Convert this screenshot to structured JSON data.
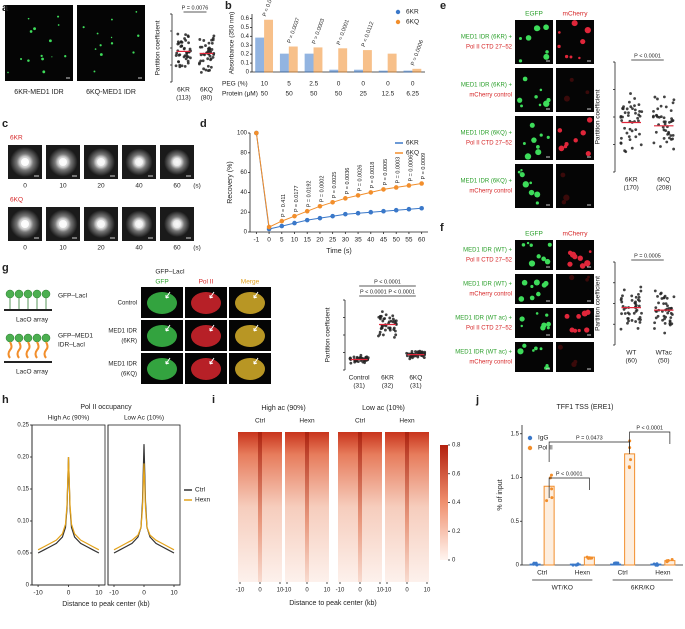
{
  "panels": {
    "a": {
      "images": [
        "6KR-MED1 IDR",
        "6KQ-MED1 IDR"
      ]
    },
    "c": {
      "label": "c",
      "rows": [
        "6KR",
        "6KQ"
      ],
      "times": [
        "0",
        "10",
        "20",
        "40",
        "60"
      ],
      "unit": "(s)"
    },
    "e": {
      "label": "e",
      "channels": [
        "EGFP",
        "mCherry"
      ],
      "rows": [
        [
          "MED1 IDR (6KR) +",
          "Pol II CTD 27–52"
        ],
        [
          "MED1 IDR (6KR) +",
          "mCherry control"
        ],
        [
          "MED1 IDR (6KQ) +",
          "Pol II CTD 27–52"
        ],
        [
          "MED1 IDR (6KQ) +",
          "mCherry control"
        ]
      ]
    },
    "f": {
      "label": "f",
      "channels": [
        "EGFP",
        "mCherry"
      ],
      "rows": [
        [
          "MED1 IDR (WT) +",
          "Pol II CTD 27–52"
        ],
        [
          "MED1 IDR (WT) +",
          "mCherry control"
        ],
        [
          "MED1 IDR (WT ac) +",
          "Pol II CTD 27–52"
        ],
        [
          "MED1 IDR (WT ac) +",
          "mCherry control"
        ]
      ]
    },
    "g": {
      "label": "g",
      "schematic": [
        "GFP–LacI",
        "LacO array",
        "GFP–MED1",
        "IDR–LacI",
        "LacO array"
      ],
      "construct": "GFP–LacI",
      "channels": [
        "GFP",
        "Pol II",
        "Merge"
      ],
      "rows": [
        [
          "Control"
        ],
        [
          "MED1 IDR",
          "(6KR)"
        ],
        [
          "MED1 IDR",
          "(6KQ)"
        ]
      ]
    }
  },
  "chart_data": [
    {
      "panel": "a",
      "type": "strip",
      "ylabel": "Partition coefficient",
      "categories": [
        "6KR",
        "6KQ"
      ],
      "counts": [
        "(113)",
        "(80)"
      ],
      "annotations": [
        "P = 0.0076"
      ]
    },
    {
      "panel": "b",
      "type": "bar",
      "ylabel": "Absorbance (350 nm)",
      "ylim": [
        0,
        0.65
      ],
      "yticks": [
        0,
        0.1,
        0.2,
        0.3,
        0.4,
        0.5,
        0.6
      ],
      "row_labels": [
        "PEG (%)",
        "Protein (μM)"
      ],
      "peg": [
        10,
        5,
        2.5,
        0,
        0,
        0,
        0
      ],
      "protein": [
        50,
        50,
        50,
        50,
        25,
        12.5,
        6.25
      ],
      "series": [
        {
          "name": "6KR",
          "color": "#3a78c9",
          "values": [
            0.38,
            0.2,
            0.2,
            0.02,
            0.02,
            0.01,
            0.01
          ]
        },
        {
          "name": "6KQ",
          "color": "#f28e2b",
          "values": [
            0.58,
            0.28,
            0.27,
            0.26,
            0.24,
            0.2,
            0.03
          ]
        }
      ],
      "annotations": [
        "P = 0.0001",
        "P = 0.0037",
        "P = 0.0003",
        "P = 0.0001",
        "P = 0.0112",
        null,
        "P = 0.0006"
      ]
    },
    {
      "panel": "d",
      "type": "line",
      "xlabel": "Time (s)",
      "ylabel": "Recovery (%)",
      "markers": true,
      "categories": [
        "-1",
        "0",
        "5",
        "10",
        "15",
        "20",
        "25",
        "30",
        "35",
        "40",
        "45",
        "50",
        "55",
        "60"
      ],
      "ylim": [
        0,
        100
      ],
      "yticks": [
        0,
        20,
        40,
        60,
        80,
        100
      ],
      "series": [
        {
          "name": "6KR",
          "color": "#3a78c9",
          "values": [
            100,
            3,
            6,
            9,
            12,
            14,
            16,
            18,
            19,
            20,
            21,
            22,
            23,
            24
          ]
        },
        {
          "name": "6KQ",
          "color": "#f28e2b",
          "values": [
            100,
            5,
            11,
            16,
            21,
            26,
            30,
            34,
            37,
            40,
            43,
            45,
            47,
            49
          ]
        }
      ],
      "annotations": [
        null,
        null,
        "P = 0.411",
        "P = 0.0177",
        "P = 0.0192",
        "P = 0.0002",
        "P = 0.0025",
        "P = 0.0036",
        "P = 0.0026",
        "P = 0.0018",
        "P = 0.0005",
        "P = 0.0003",
        "P = 0.0006",
        "P = 0.0009"
      ]
    },
    {
      "panel": "e",
      "type": "strip",
      "ylabel": "Partition coefficient",
      "categories": [
        "6KR",
        "6KQ"
      ],
      "counts": [
        "(170)",
        "(208)"
      ],
      "annotations": [
        "P < 0.0001"
      ]
    },
    {
      "panel": "f",
      "type": "strip",
      "ylabel": "Partition coefficient",
      "categories": [
        "WT",
        "WTac"
      ],
      "counts": [
        "(60)",
        "(50)"
      ],
      "annotations": [
        "P = 0.0005"
      ]
    },
    {
      "panel": "g",
      "type": "strip",
      "ylabel": "Partition coefficient",
      "categories": [
        "Control",
        "6KR",
        "6KQ"
      ],
      "counts": [
        "(31)",
        "(32)",
        "(31)"
      ],
      "annotations": [
        "P < 0.0001",
        "P < 0.0001",
        "P < 0.0001"
      ]
    },
    {
      "panel": "h",
      "type": "line",
      "title": "Pol II occupancy",
      "subtitle": "High Ac (90%)",
      "xlabel": "Distance to peak center (kb)",
      "x": [
        -10,
        -8,
        -6,
        -4,
        -2,
        -1,
        -0.5,
        0,
        0.5,
        1,
        2,
        4,
        6,
        8,
        10
      ],
      "xlim": [
        -12,
        12
      ],
      "xticks": [
        -10,
        0,
        10
      ],
      "ylim": [
        0,
        0.25
      ],
      "yticks": [
        0,
        0.05,
        {
          "value": 0.1,
          "label": "0.10"
        },
        0.15,
        {
          "value": 0.2,
          "label": "0.20"
        },
        0.25
      ],
      "series": [
        {
          "color": "#333333",
          "values": [
            0.05,
            0.055,
            0.06,
            0.065,
            0.075,
            0.09,
            0.12,
            0.2,
            0.12,
            0.09,
            0.075,
            0.065,
            0.06,
            0.055,
            0.05
          ]
        },
        {
          "color": "#e3a21a",
          "values": [
            0.055,
            0.06,
            0.065,
            0.07,
            0.08,
            0.095,
            0.125,
            0.2,
            0.125,
            0.095,
            0.08,
            0.07,
            0.065,
            0.06,
            0.055
          ]
        }
      ]
    },
    {
      "panel": "h",
      "type": "line",
      "subtitle": "Low Ac (10%)",
      "x": [
        -10,
        -8,
        -6,
        -4,
        -2,
        -1,
        -0.5,
        0,
        0.5,
        1,
        2,
        4,
        6,
        8,
        10
      ],
      "xlim": [
        -12,
        12
      ],
      "xticks": [
        -10,
        0,
        10
      ],
      "ylim": [
        0,
        0.25
      ],
      "series": [
        {
          "name": "Ctrl",
          "color": "#333333",
          "values": [
            0.05,
            0.055,
            0.06,
            0.065,
            0.075,
            0.09,
            0.13,
            0.22,
            0.13,
            0.09,
            0.075,
            0.065,
            0.06,
            0.055,
            0.05
          ]
        },
        {
          "name": "Hexn",
          "color": "#e3a21a",
          "values": [
            0.055,
            0.06,
            0.065,
            0.07,
            0.078,
            0.09,
            0.12,
            0.19,
            0.12,
            0.09,
            0.078,
            0.07,
            0.065,
            0.06,
            0.055
          ]
        }
      ]
    },
    {
      "panel": "i",
      "type": "heatmap",
      "subtitles": [
        "High ac (90%)",
        "Low ac (10%)"
      ],
      "columns": [
        "Ctrl",
        "Hexn",
        "Ctrl",
        "Hexn"
      ],
      "xlim": [
        -10,
        10
      ],
      "xticks": [
        -10,
        0,
        10
      ],
      "xlabel": "Distance to peak center (kb)",
      "clim": [
        0,
        0.8
      ],
      "cticks": [
        0,
        0.2,
        0.4,
        0.6,
        0.8
      ]
    },
    {
      "panel": "j",
      "type": "dotbar",
      "title": "TFF1 TSS (ERE1)",
      "ylabel": "% of input",
      "categories": [
        "Ctrl",
        "Hexn",
        "Ctrl",
        "Hexn"
      ],
      "groups": [
        "WT/KO",
        "6KR/KO"
      ],
      "ylim": [
        0,
        1.6
      ],
      "yticks": [
        0,
        0.5,
        {
          "value": 1,
          "label": "1.0"
        },
        1.5
      ],
      "series": [
        {
          "name": "IgG",
          "color": "#3a78c9",
          "values": [
            0.01,
            0.01,
            0.01,
            0.01
          ]
        },
        {
          "name": "Pol II",
          "color": "#f28e2b",
          "values": [
            0.9,
            0.09,
            1.27,
            0.05
          ]
        }
      ],
      "annotations": [
        "P < 0.0001",
        "P = 0.0473",
        "P < 0.0001"
      ]
    }
  ]
}
